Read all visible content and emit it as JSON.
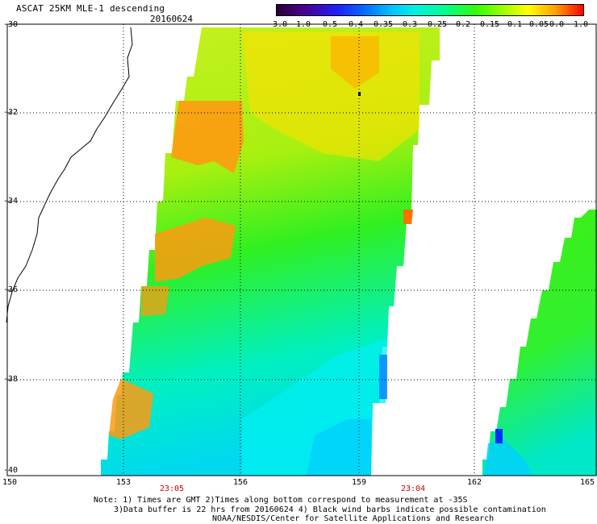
{
  "header": {
    "title": "ASCAT 25KM MLE-1 descending",
    "date": "20160624"
  },
  "colorbar": {
    "labels": [
      "-3.0",
      "-1.0",
      "-0.5",
      "-0.4",
      "-0.35",
      "-0.3",
      "-0.25",
      "-0.2",
      "-0.15",
      "-0.1",
      "-0.05",
      "0.0",
      "1.0"
    ]
  },
  "map": {
    "lat_labels": [
      "-30",
      "-32",
      "-34",
      "-36",
      "-38",
      "-40"
    ],
    "lon_labels": [
      "150",
      "153",
      "156",
      "159",
      "162",
      "165"
    ],
    "time_labels": [
      "23:05",
      "23:04"
    ]
  },
  "notes": [
    "Note: 1) Times are GMT 2)Times along bottom correspond to measurement at -35S",
    "3)Data buffer is 22 hrs from 20160624 4) Black wind barbs indicate possible contamination",
    "NOAA/NESDIS/Center for Satellite Applications and Research"
  ]
}
